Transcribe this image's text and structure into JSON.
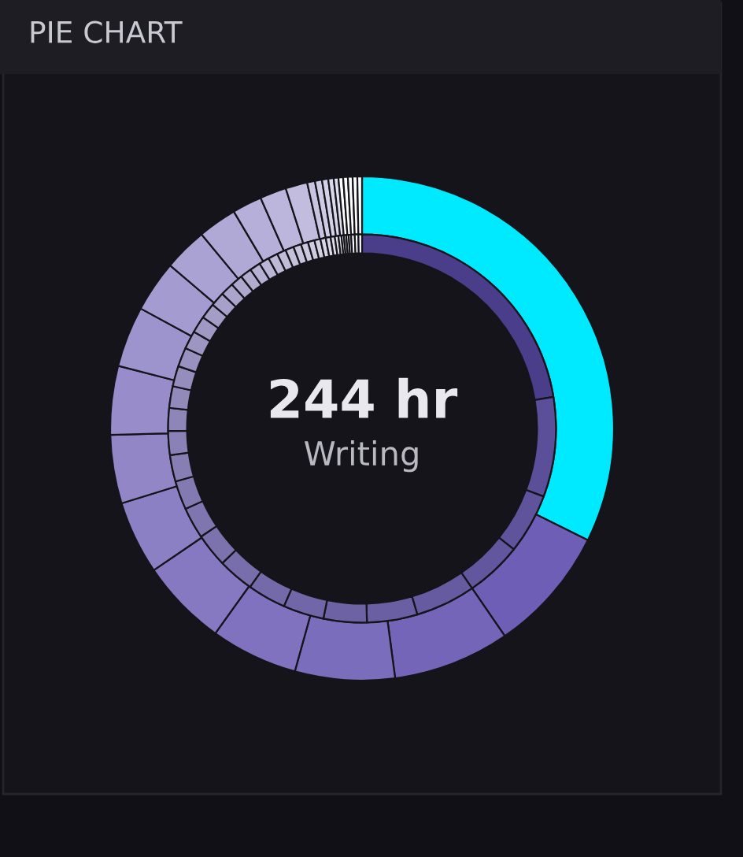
{
  "chart_data": {
    "type": "donut",
    "title": "PIE CHART",
    "annotations": [
      "244 hr",
      "Writing"
    ],
    "series": [
      {
        "values": [
          32.3,
          8.1,
          7.5,
          6.4,
          5.6,
          5.6,
          4.7,
          4.4,
          4.4,
          3.9,
          3.3,
          2.8,
          2.5,
          1.9,
          1.7,
          1.4,
          0.5,
          0.45,
          0.4,
          0.35,
          0.3,
          0.3,
          0.3,
          0.3,
          0.3,
          0.3
        ],
        "colors": [
          "#00eaff",
          "#6e5eb5",
          "#7465b8",
          "#7a6dbb",
          "#8072be",
          "#8679c1",
          "#8c80c4",
          "#9286c7",
          "#988dca",
          "#9e94cd",
          "#a49bd0",
          "#aaa2d3",
          "#b0a9d6",
          "#b6afd9",
          "#bcb6dc",
          "#c2bddf",
          "#c8c4e2",
          "#cecbe5",
          "#d4d2e8",
          "#dad8eb",
          "#e0dfee",
          "#ffffff",
          "#ffffff",
          "#ffffff",
          "#ffffff",
          "#ffffff"
        ]
      },
      {
        "values": [
          22.4,
          8.3,
          5,
          4.7,
          5,
          4.2,
          3.6,
          3.4,
          3.2,
          3.0,
          2.8,
          2.6,
          2.4,
          2.2,
          2.0,
          1.9,
          1.8,
          1.7,
          1.6,
          1.5,
          1.4,
          1.3,
          1.2,
          1.1,
          1.0,
          0.95,
          0.9,
          0.85,
          0.8,
          0.75,
          0.7,
          0.65,
          0.6,
          0.55,
          0.5,
          0.45,
          0.4,
          0.35,
          0.3,
          0.25,
          0.2,
          0.2,
          0.2,
          0.2,
          0.3,
          0.3,
          0.3
        ],
        "colors": [
          "#4a3d8a",
          "#5b4f99",
          "#5f539b",
          "#62579e",
          "#665ba0",
          "#6a5fa2",
          "#6d63a4",
          "#7166a7",
          "#746aa9",
          "#786eab",
          "#7c72ad",
          "#7f76b0",
          "#837ab2",
          "#877eb4",
          "#8a82b7",
          "#8e86b9",
          "#928abb",
          "#958ebd",
          "#9991c0",
          "#9d95c2",
          "#a099c4",
          "#a49dc6",
          "#a7a1c9",
          "#aba5cb",
          "#afa9cd",
          "#b2adcf",
          "#b6b1d2",
          "#bab5d4",
          "#bdb9d6",
          "#c1bdd9",
          "#c5c1db",
          "#c8c4dd",
          "#ccc8df",
          "#cfcce2",
          "#d3d0e4",
          "#d7d4e6",
          "#dad8e8",
          "#dedceb",
          "#e2e0ed",
          "#e5e4ef",
          "#e9e8f2",
          "#edecf4",
          "#f0f0f6",
          "#f4f4f8",
          "#f8f8fb",
          "#fbfcfd",
          "#ffffff"
        ]
      }
    ]
  }
}
